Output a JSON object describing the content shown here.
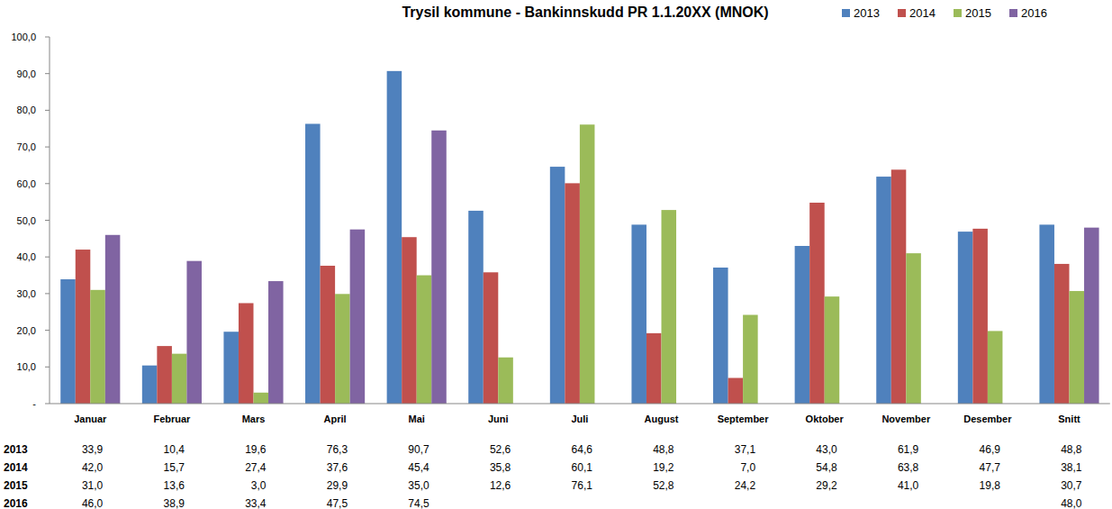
{
  "chart_data": {
    "type": "bar",
    "title": "Trysil kommune - Bankinnskudd  PR 1.1.20XX (MNOK)",
    "categories": [
      "Januar",
      "Februar",
      "Mars",
      "April",
      "Mai",
      "Juni",
      "Juli",
      "August",
      "September",
      "Oktober",
      "November",
      "Desember",
      "Snitt"
    ],
    "series": [
      {
        "name": "2013",
        "color": "#4f81bd",
        "values": [
          33.9,
          10.4,
          19.6,
          76.3,
          90.7,
          52.6,
          64.6,
          48.8,
          37.1,
          43.0,
          61.9,
          46.9,
          48.8
        ],
        "value_labels": [
          "33,9",
          "10,4",
          "19,6",
          "76,3",
          "90,7",
          "52,6",
          "64,6",
          "48,8",
          "37,1",
          "43,0",
          "61,9",
          "46,9",
          "48,8"
        ]
      },
      {
        "name": "2014",
        "color": "#c0504d",
        "values": [
          42.0,
          15.7,
          27.4,
          37.6,
          45.4,
          35.8,
          60.1,
          19.2,
          7.0,
          54.8,
          63.8,
          47.7,
          38.1
        ],
        "value_labels": [
          "42,0",
          "15,7",
          "27,4",
          "37,6",
          "45,4",
          "35,8",
          "60,1",
          "19,2",
          "7,0",
          "54,8",
          "63,8",
          "47,7",
          "38,1"
        ]
      },
      {
        "name": "2015",
        "color": "#9bbb59",
        "values": [
          31.0,
          13.6,
          3.0,
          29.9,
          35.0,
          12.6,
          76.1,
          52.8,
          24.2,
          29.2,
          41.0,
          19.8,
          30.7
        ],
        "value_labels": [
          "31,0",
          "13,6",
          "3,0",
          "29,9",
          "35,0",
          "12,6",
          "76,1",
          "52,8",
          "24,2",
          "29,2",
          "41,0",
          "19,8",
          "30,7"
        ]
      },
      {
        "name": "2016",
        "color": "#8064a2",
        "values": [
          46.0,
          38.9,
          33.4,
          47.5,
          74.5,
          null,
          null,
          null,
          null,
          null,
          null,
          null,
          48.0
        ],
        "value_labels": [
          "46,0",
          "38,9",
          "33,4",
          "47,5",
          "74,5",
          null,
          null,
          null,
          null,
          null,
          null,
          null,
          "48,0"
        ]
      }
    ],
    "ylim": [
      0,
      100
    ],
    "yticks": [
      {
        "value": 0,
        "label": "-"
      },
      {
        "value": 10,
        "label": "10,0"
      },
      {
        "value": 20,
        "label": "20,0"
      },
      {
        "value": 30,
        "label": "30,0"
      },
      {
        "value": 40,
        "label": "40,0"
      },
      {
        "value": 50,
        "label": "50,0"
      },
      {
        "value": 60,
        "label": "60,0"
      },
      {
        "value": 70,
        "label": "70,0"
      },
      {
        "value": 80,
        "label": "80,0"
      },
      {
        "value": 90,
        "label": "90,0"
      },
      {
        "value": 100,
        "label": "100,0"
      }
    ],
    "grid": false,
    "legend": "top-right"
  }
}
